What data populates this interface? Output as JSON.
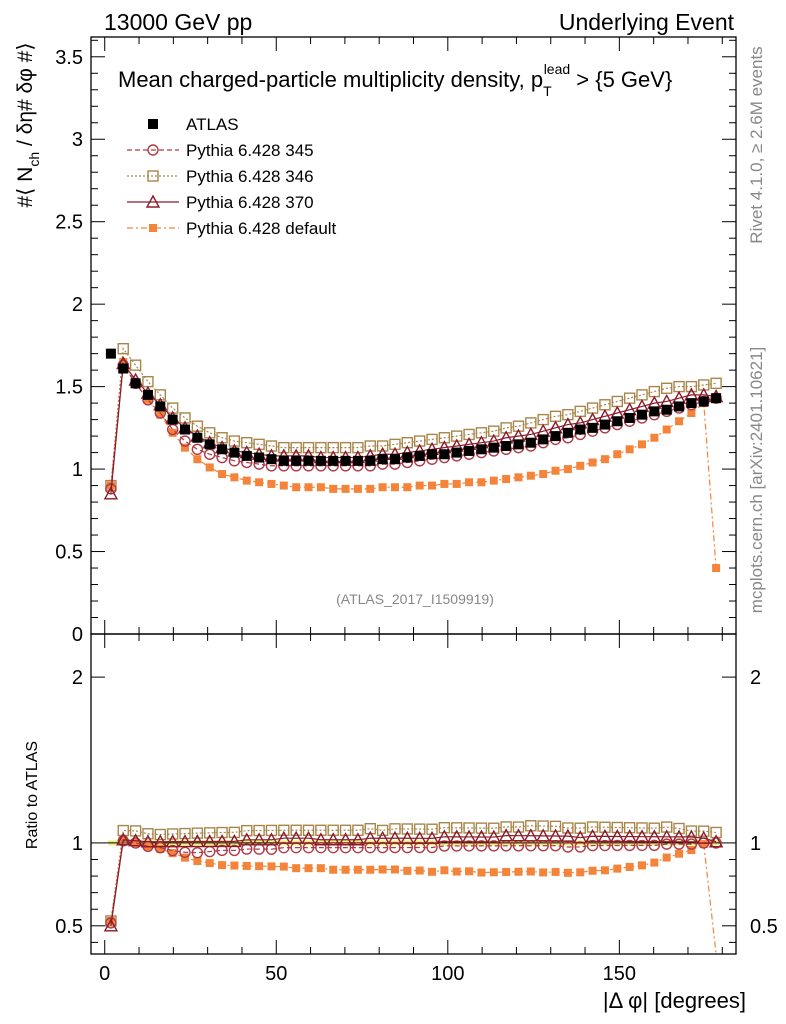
{
  "header": {
    "left": "13000 GeV pp",
    "right": "Underlying Event"
  },
  "side_labels": {
    "rivet": "Rivet 4.1.0, ≥ 2.6M events",
    "mcplots": "mcplots.cern.ch [arXiv:2401.10621]"
  },
  "chart_data": {
    "type": "scatter",
    "title_main": "Mean charged-particle multiplicity density, p",
    "title_sub": "T",
    "title_sup": "lead",
    "title_tail": " > {5 GeV}",
    "analysis_id": "(ATLAS_2017_I1509919)",
    "xlabel": "|Δ φ| [degrees]",
    "ylabel_main": "#⟨ N",
    "ylabel_sub": "ch",
    "ylabel_tail": " / δη# δφ #⟩",
    "ratio_ylabel": "Ratio to ATLAS",
    "xlim": [
      -4,
      184
    ],
    "ylim": [
      0,
      3.62
    ],
    "ratio_ylim": [
      0.33,
      2.26
    ],
    "x_ticks": [
      "0",
      "50",
      "100",
      "150"
    ],
    "y_ticks": [
      "0",
      "0.5",
      "1",
      "1.5",
      "2",
      "2.5",
      "3",
      "3.5"
    ],
    "ratio_ticks": [
      "0.5",
      "1",
      "2"
    ],
    "x": [
      1.8,
      5.4,
      9,
      12.6,
      16.2,
      19.8,
      23.4,
      27,
      30.6,
      34.2,
      37.8,
      41.4,
      45,
      48.6,
      52.2,
      55.8,
      59.4,
      63,
      66.6,
      70.2,
      73.8,
      77.4,
      81,
      84.6,
      88.2,
      91.8,
      95.4,
      99,
      102.6,
      106.2,
      109.8,
      113.4,
      117,
      120.6,
      124.2,
      127.8,
      131.4,
      135,
      138.6,
      142.2,
      145.8,
      149.4,
      153,
      156.6,
      160.2,
      163.8,
      167.4,
      171,
      174.6,
      178.2
    ],
    "legend": [
      "ATLAS",
      "Pythia 6.428 345",
      "Pythia 6.428 346",
      "Pythia 6.428 370",
      "Pythia 6.428 default"
    ],
    "series": [
      {
        "name": "ATLAS",
        "marker": "filled-square",
        "color": "#000000",
        "values": [
          1.7,
          1.61,
          1.52,
          1.45,
          1.38,
          1.3,
          1.24,
          1.19,
          1.15,
          1.12,
          1.1,
          1.08,
          1.07,
          1.06,
          1.05,
          1.05,
          1.05,
          1.05,
          1.05,
          1.05,
          1.05,
          1.05,
          1.06,
          1.06,
          1.07,
          1.08,
          1.09,
          1.09,
          1.1,
          1.11,
          1.12,
          1.13,
          1.14,
          1.15,
          1.16,
          1.18,
          1.2,
          1.22,
          1.24,
          1.25,
          1.27,
          1.29,
          1.31,
          1.33,
          1.35,
          1.36,
          1.38,
          1.4,
          1.41,
          1.43
        ]
      },
      {
        "name": "Pythia 6.428 345",
        "marker": "open-circle",
        "color": "#b03a48",
        "values": [
          0.88,
          1.63,
          1.52,
          1.42,
          1.34,
          1.24,
          1.17,
          1.12,
          1.09,
          1.07,
          1.05,
          1.04,
          1.03,
          1.02,
          1.02,
          1.02,
          1.02,
          1.02,
          1.02,
          1.02,
          1.02,
          1.02,
          1.03,
          1.03,
          1.04,
          1.05,
          1.06,
          1.07,
          1.08,
          1.09,
          1.1,
          1.11,
          1.12,
          1.13,
          1.14,
          1.16,
          1.18,
          1.19,
          1.21,
          1.23,
          1.25,
          1.27,
          1.29,
          1.31,
          1.33,
          1.35,
          1.37,
          1.39,
          1.41,
          1.43
        ]
      },
      {
        "name": "Pythia 6.428 346",
        "marker": "open-square",
        "color": "#a8864a",
        "values": [
          0.9,
          1.73,
          1.63,
          1.53,
          1.45,
          1.37,
          1.31,
          1.26,
          1.22,
          1.19,
          1.17,
          1.16,
          1.15,
          1.14,
          1.13,
          1.13,
          1.13,
          1.13,
          1.13,
          1.13,
          1.13,
          1.14,
          1.14,
          1.15,
          1.16,
          1.17,
          1.18,
          1.19,
          1.2,
          1.21,
          1.22,
          1.23,
          1.25,
          1.26,
          1.28,
          1.3,
          1.32,
          1.33,
          1.35,
          1.37,
          1.39,
          1.41,
          1.43,
          1.45,
          1.47,
          1.49,
          1.5,
          1.5,
          1.51,
          1.52
        ]
      },
      {
        "name": "Pythia 6.428 370",
        "marker": "open-triangle",
        "color": "#8b1a2b",
        "values": [
          0.85,
          1.64,
          1.54,
          1.46,
          1.39,
          1.31,
          1.25,
          1.2,
          1.16,
          1.13,
          1.11,
          1.1,
          1.09,
          1.08,
          1.08,
          1.08,
          1.08,
          1.07,
          1.07,
          1.07,
          1.07,
          1.08,
          1.09,
          1.09,
          1.1,
          1.11,
          1.12,
          1.13,
          1.14,
          1.15,
          1.16,
          1.17,
          1.19,
          1.2,
          1.21,
          1.23,
          1.25,
          1.27,
          1.28,
          1.3,
          1.32,
          1.34,
          1.36,
          1.38,
          1.4,
          1.41,
          1.43,
          1.45,
          1.45,
          1.44
        ]
      },
      {
        "name": "Pythia 6.428 default",
        "marker": "filled-square-small",
        "color": "#f4843a",
        "values": [
          0.9,
          1.65,
          1.52,
          1.42,
          1.33,
          1.22,
          1.13,
          1.06,
          1.01,
          0.97,
          0.95,
          0.93,
          0.92,
          0.91,
          0.9,
          0.89,
          0.89,
          0.89,
          0.88,
          0.88,
          0.88,
          0.88,
          0.89,
          0.89,
          0.89,
          0.9,
          0.9,
          0.91,
          0.91,
          0.92,
          0.92,
          0.93,
          0.94,
          0.95,
          0.96,
          0.97,
          0.99,
          1.0,
          1.02,
          1.04,
          1.06,
          1.09,
          1.12,
          1.15,
          1.19,
          1.24,
          1.29,
          1.34,
          1.4,
          0.4
        ]
      }
    ]
  }
}
